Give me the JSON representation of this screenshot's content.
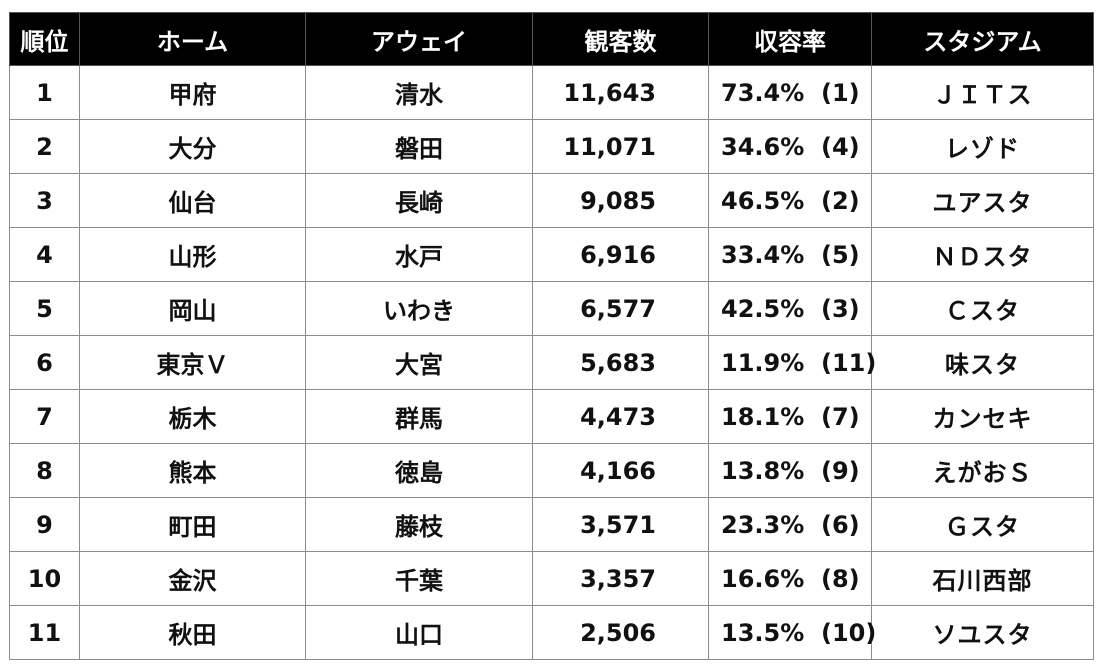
{
  "headers": [
    "順位",
    "ホーム",
    "アウェイ",
    "観客数",
    "収容率",
    "スタジアム"
  ],
  "rows": [
    {
      "rank": "1",
      "home": "甲府",
      "away": "清水",
      "attendance": "11,643",
      "rate": "73.4%",
      "rate_rank": "(1)",
      "stadium": "ＪＩＴス"
    },
    {
      "rank": "2",
      "home": "大分",
      "away": "磐田",
      "attendance": "11,071",
      "rate": "34.6%",
      "rate_rank": "(4)",
      "stadium": "レゾド"
    },
    {
      "rank": "3",
      "home": "仙台",
      "away": "長崎",
      "attendance": "9,085",
      "rate": "46.5%",
      "rate_rank": "(2)",
      "stadium": "ユアスタ"
    },
    {
      "rank": "4",
      "home": "山形",
      "away": "水戸",
      "attendance": "6,916",
      "rate": "33.4%",
      "rate_rank": "(5)",
      "stadium": "ＮＤスタ"
    },
    {
      "rank": "5",
      "home": "岡山",
      "away": "いわき",
      "attendance": "6,577",
      "rate": "42.5%",
      "rate_rank": "(3)",
      "stadium": "Ｃスタ"
    },
    {
      "rank": "6",
      "home": "東京Ｖ",
      "away": "大宮",
      "attendance": "5,683",
      "rate": "11.9%",
      "rate_rank": "(11)",
      "stadium": "味スタ"
    },
    {
      "rank": "7",
      "home": "栃木",
      "away": "群馬",
      "attendance": "4,473",
      "rate": "18.1%",
      "rate_rank": "(7)",
      "stadium": "カンセキ"
    },
    {
      "rank": "8",
      "home": "熊本",
      "away": "徳島",
      "attendance": "4,166",
      "rate": "13.8%",
      "rate_rank": "(9)",
      "stadium": "えがおＳ"
    },
    {
      "rank": "9",
      "home": "町田",
      "away": "藤枝",
      "attendance": "3,571",
      "rate": "23.3%",
      "rate_rank": "(6)",
      "stadium": "Ｇスタ"
    },
    {
      "rank": "10",
      "home": "金沢",
      "away": "千葉",
      "attendance": "3,357",
      "rate": "16.6%",
      "rate_rank": "(8)",
      "stadium": "石川西部"
    },
    {
      "rank": "11",
      "home": "秋田",
      "away": "山口",
      "attendance": "2,506",
      "rate": "13.5%",
      "rate_rank": "(10)",
      "stadium": "ソユスタ"
    }
  ]
}
